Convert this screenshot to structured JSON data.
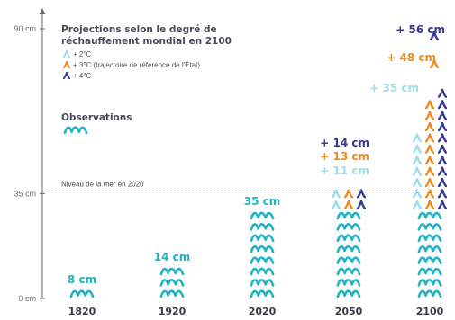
{
  "colors": {
    "observation": "#1fb3c6",
    "proj_2c": "#9fdcea",
    "proj_3c": "#f08a1e",
    "proj_4c": "#38398f",
    "axis": "#6b6b6b",
    "text": "#3a3a4a"
  },
  "icons": {
    "wave": "wave-icon",
    "chevron": "chevron-wave-icon"
  },
  "chart_data": {
    "type": "bar",
    "title": "",
    "xlabel": "",
    "ylabel": "",
    "ylim": [
      0,
      100
    ],
    "y_ticks": [
      {
        "value": 0,
        "label": "0 cm"
      },
      {
        "value": 35,
        "label": "35 cm"
      },
      {
        "value": 90,
        "label": "90 cm"
      }
    ],
    "categories": [
      "1820",
      "1920",
      "2020",
      "2050",
      "2100"
    ],
    "observations": {
      "name": "Observations",
      "values": [
        8,
        14,
        35,
        null,
        35
      ],
      "labels": [
        "8 cm",
        "14 cm",
        "35 cm",
        "",
        ""
      ]
    },
    "projections": [
      {
        "name": "+ 2°C",
        "values": [
          null,
          null,
          null,
          11,
          35
        ],
        "labels": [
          "",
          "",
          "",
          "+ 11 cm",
          "+ 35 cm"
        ]
      },
      {
        "name": "+ 3°C (trajectoire de référence de l'État)",
        "values": [
          null,
          null,
          null,
          13,
          48
        ],
        "labels": [
          "",
          "",
          "",
          "+ 13 cm",
          "+ 48 cm"
        ]
      },
      {
        "name": "+ 4°C",
        "values": [
          null,
          null,
          null,
          14,
          56
        ],
        "labels": [
          "",
          "",
          "",
          "+ 14 cm",
          "+ 56 cm"
        ]
      }
    ],
    "legend": {
      "title_lines": [
        "Projections selon le degré de",
        "réchauffement mondial en 2100"
      ],
      "observations_label": "Observations",
      "placement": "top-left"
    },
    "reference_line": {
      "value": 35,
      "label": "Niveau de la mer en 2020"
    },
    "grid": false
  }
}
